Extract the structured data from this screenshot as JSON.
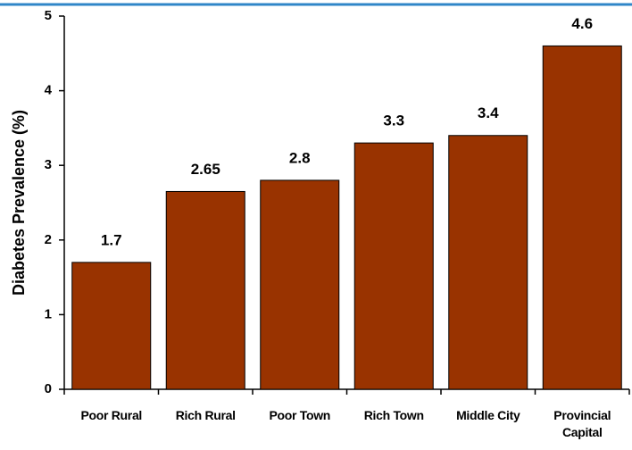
{
  "chart_data": {
    "type": "bar",
    "y_label": "Diabetes Prevalence (%)",
    "categories": [
      "Poor Rural",
      "Rich Rural",
      "Poor Town",
      "Rich Town",
      "Middle City",
      "Provincial Capital"
    ],
    "values": [
      1.7,
      2.65,
      2.8,
      3.3,
      3.4,
      4.6
    ],
    "color": "#993300",
    "ylim": [
      0,
      5
    ],
    "yticks": [
      0,
      1,
      2,
      3,
      4,
      5
    ],
    "grid": false
  }
}
